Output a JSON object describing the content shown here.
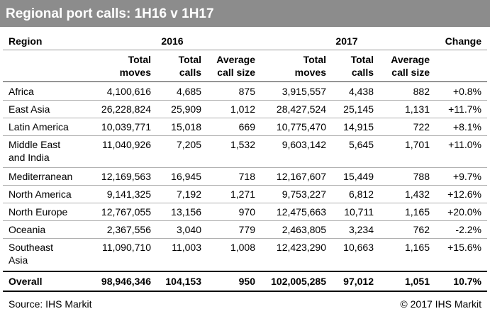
{
  "title": "Regional port calls: 1H16 v 1H17",
  "header": {
    "region": "Region",
    "year_2016": "2016",
    "year_2017": "2017",
    "change": "Change"
  },
  "subheader": [
    [
      "Total",
      "moves"
    ],
    [
      "Total",
      "calls"
    ],
    [
      "Average",
      "call size"
    ],
    [
      "Total",
      "moves"
    ],
    [
      "Total",
      "calls"
    ],
    [
      "Average",
      "call size"
    ]
  ],
  "rows": [
    {
      "region": [
        "Africa"
      ],
      "cells": [
        "4,100,616",
        "4,685",
        "875",
        "3,915,557",
        "4,438",
        "882",
        "+0.8%"
      ]
    },
    {
      "region": [
        "East Asia"
      ],
      "cells": [
        "26,228,824",
        "25,909",
        "1,012",
        "28,427,524",
        "25,145",
        "1,131",
        "+11.7%"
      ]
    },
    {
      "region": [
        "Latin America"
      ],
      "cells": [
        "10,039,771",
        "15,018",
        "669",
        "10,775,470",
        "14,915",
        "722",
        "+8.1%"
      ]
    },
    {
      "region": [
        "Middle East",
        "and India"
      ],
      "cells": [
        "11,040,926",
        "7,205",
        "1,532",
        "9,603,142",
        "5,645",
        "1,701",
        "+11.0%"
      ]
    },
    {
      "region": [
        "Mediterranean"
      ],
      "cells": [
        "12,169,563",
        "16,945",
        "718",
        "12,167,607",
        "15,449",
        "788",
        "+9.7%"
      ]
    },
    {
      "region": [
        "North America"
      ],
      "cells": [
        "9,141,325",
        "7,192",
        "1,271",
        "9,753,227",
        "6,812",
        "1,432",
        "+12.6%"
      ]
    },
    {
      "region": [
        "North Europe"
      ],
      "cells": [
        "12,767,055",
        "13,156",
        "970",
        "12,475,663",
        "10,711",
        "1,165",
        "+20.0%"
      ]
    },
    {
      "region": [
        "Oceania"
      ],
      "cells": [
        "2,367,556",
        "3,040",
        "779",
        "2,463,805",
        "3,234",
        "762",
        "-2.2%"
      ]
    },
    {
      "region": [
        "Southeast",
        "Asia"
      ],
      "cells": [
        "11,090,710",
        "11,003",
        "1,008",
        "12,423,290",
        "10,663",
        "1,165",
        "+15.6%"
      ]
    }
  ],
  "overall": {
    "region": "Overall",
    "cells": [
      "98,946,346",
      "104,153",
      "950",
      "102,005,285",
      "97,012",
      "1,051",
      "10.7%"
    ]
  },
  "footer": {
    "source": "Source: IHS Markit",
    "copyright": "© 2017 IHS Markit"
  }
}
